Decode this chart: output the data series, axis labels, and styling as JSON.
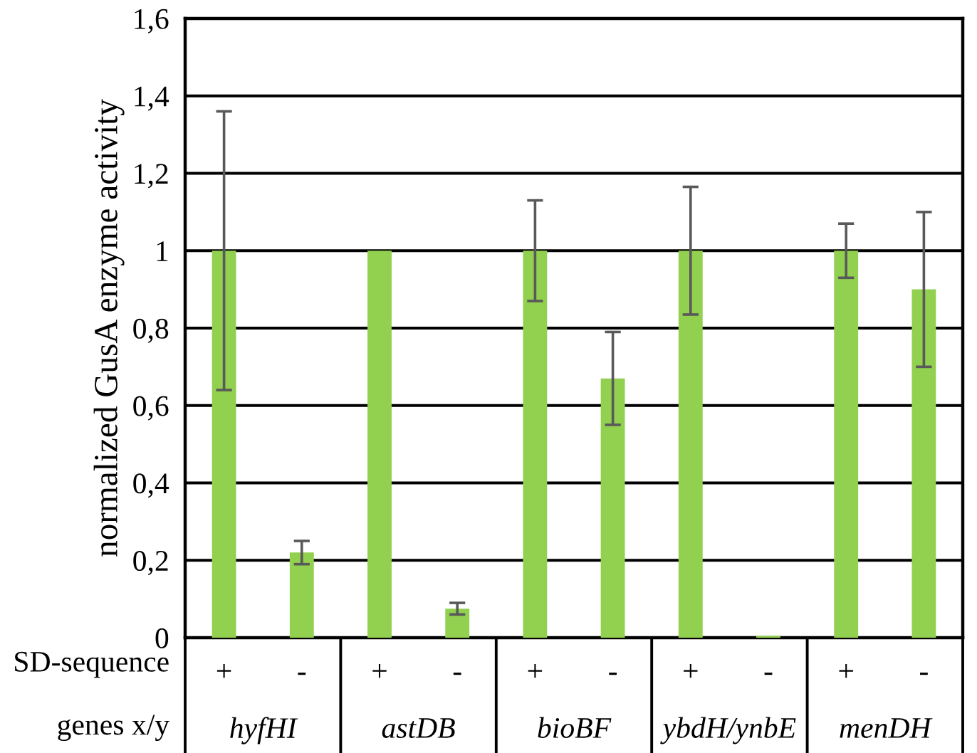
{
  "chart_data": {
    "type": "bar",
    "ylabel": "normalized GusA enzyme activity",
    "categories": [
      "+",
      "-",
      "+",
      "-",
      "+",
      "-",
      "+",
      "-",
      "+",
      "-"
    ],
    "values": [
      1,
      0.22,
      1,
      0.075,
      1,
      0.67,
      1,
      0.005,
      1,
      0.9
    ],
    "errors": [
      0.36,
      0.03,
      null,
      0.015,
      0.13,
      0.12,
      0.165,
      null,
      0.07,
      0.2
    ],
    "color": "#92d050",
    "ylim": [
      0,
      1.6
    ],
    "yticks": [
      0,
      {
        "value": 0.2,
        "label": "0,2"
      },
      {
        "value": 0.4,
        "label": "0,4"
      },
      {
        "value": 0.6,
        "label": "0,6"
      },
      {
        "value": 0.8,
        "label": "0,8"
      },
      1,
      {
        "value": 1.2,
        "label": "1,2"
      },
      {
        "value": 1.4,
        "label": "1,4"
      },
      {
        "value": 1.6,
        "label": "1,6"
      }
    ],
    "grid": "y",
    "annotations": [
      "SD-sequence",
      "genes x/y",
      "hyfHI",
      "astDB",
      "bioBF",
      "ybdH/ynbE",
      "menDH"
    ]
  }
}
